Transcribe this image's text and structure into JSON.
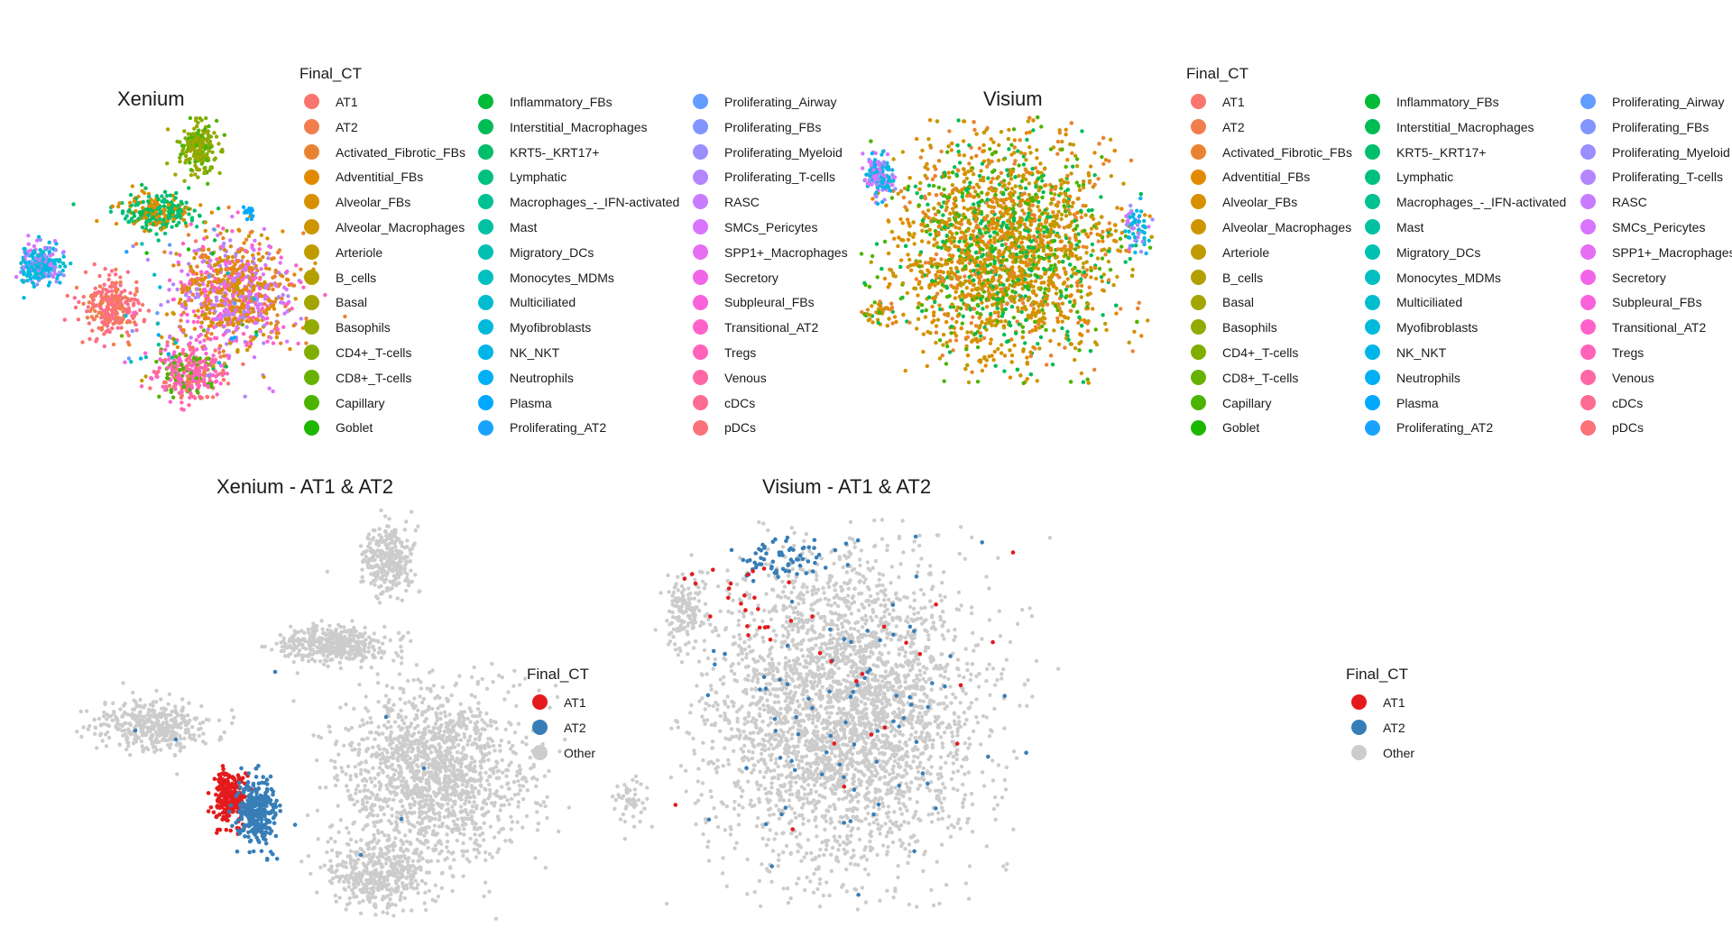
{
  "panels": {
    "xenium": {
      "title": "Xenium"
    },
    "visium": {
      "title": "Visium"
    },
    "xenium_at": {
      "title": "Xenium - AT1 & AT2"
    },
    "visium_at": {
      "title": "Visium - AT1 & AT2"
    }
  },
  "legend_ct": {
    "title": "Final_CT",
    "items": [
      {
        "label": "AT1",
        "color": "#F8766D"
      },
      {
        "label": "AT2",
        "color": "#F17E4C"
      },
      {
        "label": "Activated_Fibrotic_FBs",
        "color": "#EA8331"
      },
      {
        "label": "Adventitial_FBs",
        "color": "#E18A00"
      },
      {
        "label": "Alveolar_FBs",
        "color": "#D89000"
      },
      {
        "label": "Alveolar_Macrophages",
        "color": "#CD9600"
      },
      {
        "label": "Arteriole",
        "color": "#C09B00"
      },
      {
        "label": "B_cells",
        "color": "#B3A000"
      },
      {
        "label": "Basal",
        "color": "#A3A500"
      },
      {
        "label": "Basophils",
        "color": "#93AA00"
      },
      {
        "label": "CD4+_T-cells",
        "color": "#7FAE00"
      },
      {
        "label": "CD8+_T-cells",
        "color": "#68B100"
      },
      {
        "label": "Capillary",
        "color": "#4CB400"
      },
      {
        "label": "Goblet",
        "color": "#1DB700"
      },
      {
        "label": "Inflammatory_FBs",
        "color": "#00BA38"
      },
      {
        "label": "Interstitial_Macrophages",
        "color": "#00BC55"
      },
      {
        "label": "KRT5-_KRT17+",
        "color": "#00BE6C"
      },
      {
        "label": "Lymphatic",
        "color": "#00C07F"
      },
      {
        "label": "Macrophages_-_IFN-activated",
        "color": "#00C191"
      },
      {
        "label": "Mast",
        "color": "#00C1A2"
      },
      {
        "label": "Migratory_DCs",
        "color": "#00C0B2"
      },
      {
        "label": "Monocytes_MDMs",
        "color": "#00BFC1"
      },
      {
        "label": "Multiciliated",
        "color": "#00BDCF"
      },
      {
        "label": "Myofibroblasts",
        "color": "#00BADC"
      },
      {
        "label": "NK_NKT",
        "color": "#00B5E8"
      },
      {
        "label": "Neutrophils",
        "color": "#00B0F4"
      },
      {
        "label": "Plasma",
        "color": "#00A9FF"
      },
      {
        "label": "Proliferating_AT2",
        "color": "#1AA2FF"
      },
      {
        "label": "Proliferating_Airway",
        "color": "#619CFF"
      },
      {
        "label": "Proliferating_FBs",
        "color": "#8295FF"
      },
      {
        "label": "Proliferating_Myeloid",
        "color": "#9B8EFF"
      },
      {
        "label": "Proliferating_T-cells",
        "color": "#B385FF"
      },
      {
        "label": "RASC",
        "color": "#C77CFF"
      },
      {
        "label": "SMCs_Pericytes",
        "color": "#D874FD"
      },
      {
        "label": "SPP1+_Macrophages",
        "color": "#E66EF4"
      },
      {
        "label": "Secretory",
        "color": "#F166E8"
      },
      {
        "label": "Subpleural_FBs",
        "color": "#FA62DB"
      },
      {
        "label": "Transitional_AT2",
        "color": "#FF61CB"
      },
      {
        "label": "Tregs",
        "color": "#FF63B9"
      },
      {
        "label": "Venous",
        "color": "#FF67A6"
      },
      {
        "label": "cDCs",
        "color": "#FF6C91"
      },
      {
        "label": "pDCs",
        "color": "#FB727B"
      }
    ]
  },
  "legend_at": {
    "title": "Final_CT",
    "items": [
      {
        "label": "AT1",
        "color": "#E41A1C"
      },
      {
        "label": "AT2",
        "color": "#377EB8"
      },
      {
        "label": "Other",
        "color": "#CCCCCC"
      }
    ]
  },
  "chart_data": [
    {
      "type": "scatter",
      "title": "Xenium",
      "color_by": "Final_CT",
      "description_of_clusters": [
        {
          "region": "top",
          "dominant": [
            "Basal",
            "CD4+_T-cells"
          ]
        },
        {
          "region": "upper-left",
          "dominant": [
            "Adventitial_FBs",
            "Interstitial_Macrophages"
          ]
        },
        {
          "region": "left",
          "dominant": [
            "Myofibroblasts",
            "SMCs_Pericytes"
          ]
        },
        {
          "region": "center-left",
          "dominant": [
            "AT1",
            "AT2",
            "Transitional_AT2"
          ]
        },
        {
          "region": "right",
          "dominant": [
            "Activated_Fibrotic_FBs",
            "Alveolar_Macrophages",
            "SMCs_Pericytes"
          ]
        },
        {
          "region": "bottom",
          "dominant": [
            "Transitional_AT2",
            "AT1",
            "Capillary"
          ]
        }
      ]
    },
    {
      "type": "scatter",
      "title": "Visium",
      "color_by": "Final_CT",
      "description_of_clusters": [
        {
          "region": "main",
          "dominant": [
            "Alveolar_Macrophages",
            "Adventitial_FBs",
            "Capillary"
          ]
        },
        {
          "region": "upper-left",
          "dominant": [
            "Myofibroblasts",
            "SMCs_Pericytes"
          ]
        }
      ]
    },
    {
      "type": "scatter",
      "title": "Xenium - AT1 & AT2",
      "color_by": "Final_CT",
      "series": [
        {
          "name": "AT1"
        },
        {
          "name": "AT2"
        },
        {
          "name": "Other"
        }
      ]
    },
    {
      "type": "scatter",
      "title": "Visium - AT1 & AT2",
      "color_by": "Final_CT",
      "series": [
        {
          "name": "AT1"
        },
        {
          "name": "AT2"
        },
        {
          "name": "Other"
        }
      ]
    }
  ]
}
